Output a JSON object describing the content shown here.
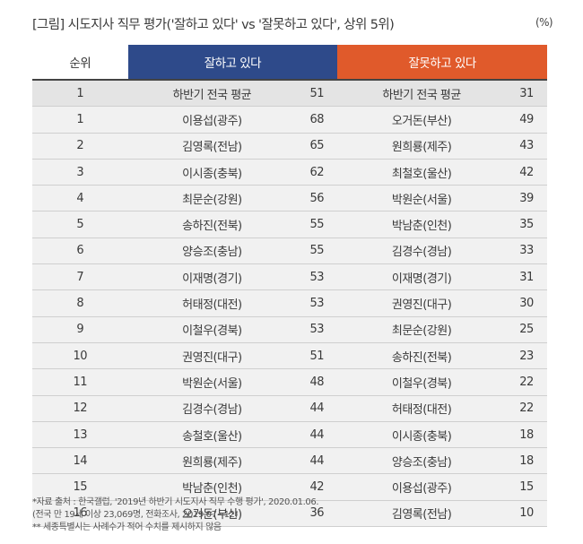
{
  "title": "[그림] 시도지사 직무 평가('잘하고 있다' vs '잘못하고 있다', 상위 5위)",
  "unit": "(%)",
  "headers": {
    "rank": "순위",
    "good": "잘하고 있다",
    "bad": "잘못하고 있다"
  },
  "rows": [
    {
      "rank": "1",
      "good_name": "하반기 전국 평균",
      "good_value": "51",
      "bad_name": "하반기 전국 평균",
      "bad_value": "31"
    },
    {
      "rank": "1",
      "good_name": "이용섭(광주)",
      "good_value": "68",
      "bad_name": "오거돈(부산)",
      "bad_value": "49"
    },
    {
      "rank": "2",
      "good_name": "김영록(전남)",
      "good_value": "65",
      "bad_name": "원희룡(제주)",
      "bad_value": "43"
    },
    {
      "rank": "3",
      "good_name": "이시종(충북)",
      "good_value": "62",
      "bad_name": "최철호(울산)",
      "bad_value": "42"
    },
    {
      "rank": "4",
      "good_name": "최문순(강원)",
      "good_value": "56",
      "bad_name": "박원순(서울)",
      "bad_value": "39"
    },
    {
      "rank": "5",
      "good_name": "송하진(전북)",
      "good_value": "55",
      "bad_name": "박남춘(인천)",
      "bad_value": "35"
    },
    {
      "rank": "6",
      "good_name": "양승조(충남)",
      "good_value": "55",
      "bad_name": "김경수(경남)",
      "bad_value": "33"
    },
    {
      "rank": "7",
      "good_name": "이재명(경기)",
      "good_value": "53",
      "bad_name": "이재명(경기)",
      "bad_value": "31"
    },
    {
      "rank": "8",
      "good_name": "허태정(대전)",
      "good_value": "53",
      "bad_name": "권영진(대구)",
      "bad_value": "30"
    },
    {
      "rank": "9",
      "good_name": "이철우(경북)",
      "good_value": "53",
      "bad_name": "최문순(강원)",
      "bad_value": "25"
    },
    {
      "rank": "10",
      "good_name": "권영진(대구)",
      "good_value": "51",
      "bad_name": "송하진(전북)",
      "bad_value": "23"
    },
    {
      "rank": "11",
      "good_name": "박원순(서울)",
      "good_value": "48",
      "bad_name": "이철우(경북)",
      "bad_value": "22"
    },
    {
      "rank": "12",
      "good_name": "김경수(경남)",
      "good_value": "44",
      "bad_name": "허태정(대전)",
      "bad_value": "22"
    },
    {
      "rank": "13",
      "good_name": "송철호(울산)",
      "good_value": "44",
      "bad_name": "이시종(충북)",
      "bad_value": "18"
    },
    {
      "rank": "14",
      "good_name": "원희룡(제주)",
      "good_value": "44",
      "bad_name": "양승조(충남)",
      "bad_value": "18"
    },
    {
      "rank": "15",
      "good_name": "박남춘(인천)",
      "good_value": "42",
      "bad_name": "이용섭(광주)",
      "bad_value": "15"
    },
    {
      "rank": "16",
      "good_name": "오거돈(부산)",
      "good_value": "36",
      "bad_name": "김영록(전남)",
      "bad_value": "10"
    }
  ],
  "notes": [
    "*자료 출처 : 한국갤럽, '2019년 하반기 시도지사 직무 수행 평가', 2020.01.06.",
    "(전국 만 19세 이상 23,069명, 전화조사, 2019.07~12)",
    "** 세종특별시는 사례수가 적어 수치를 제시하지 않음"
  ],
  "colors": {
    "good_header": "#2e4a8a",
    "bad_header": "#e05a2b",
    "row_bg": "#f1f1f1",
    "avg_row_bg": "#e4e4e4"
  }
}
